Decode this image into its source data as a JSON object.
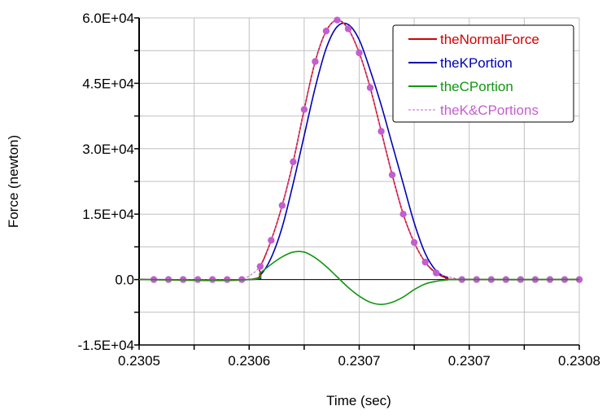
{
  "chart_data": {
    "type": "line",
    "title": "",
    "xlabel": "Time (sec)",
    "ylabel": "Force (newton)",
    "xlim": [
      0.2305,
      0.2308
    ],
    "ylim": [
      -15000,
      60000
    ],
    "grid": true,
    "legend_position": "top-right",
    "x_ticks": [
      0.2305,
      0.230575,
      0.23065,
      0.230725,
      0.2308
    ],
    "x_tick_labels": [
      "0.2305",
      "0.2306",
      "0.2307",
      "0.2307",
      "0.2308"
    ],
    "y_ticks": [
      60000,
      45000,
      30000,
      15000,
      0,
      -15000
    ],
    "y_tick_labels": [
      "6.0E+04",
      "4.5E+04",
      "3.0E+04",
      "1.5E+04",
      "0.0",
      "-1.5E+04"
    ],
    "x": [
      0.2305,
      0.230575,
      0.2305825,
      0.23059,
      0.2305975,
      0.230605,
      0.2306125,
      0.23062,
      0.2306275,
      0.230635,
      0.2306425,
      0.23065,
      0.2306575,
      0.230665,
      0.2306725,
      0.23068,
      0.2306875,
      0.230695,
      0.2307025,
      0.23071,
      0.2307175,
      0.2308
    ],
    "series": [
      {
        "name": "theNormalForce",
        "color": "#d40000",
        "style": "solid",
        "values": [
          0,
          0,
          3000,
          9000,
          17000,
          27000,
          39000,
          50000,
          57000,
          59500,
          57500,
          52000,
          44000,
          34000,
          24000,
          15000,
          8500,
          4000,
          1500,
          300,
          0,
          0
        ]
      },
      {
        "name": "theKPortion",
        "color": "#0000b4",
        "style": "solid",
        "values": [
          0,
          0,
          1000,
          5000,
          12000,
          22000,
          33000,
          44000,
          53000,
          58000,
          58500,
          55000,
          48000,
          40000,
          31000,
          22000,
          13000,
          6000,
          2000,
          500,
          0,
          0
        ]
      },
      {
        "name": "theCPortion",
        "color": "#129612",
        "style": "solid",
        "values": [
          0,
          0,
          1500,
          3500,
          5200,
          6300,
          6300,
          5000,
          3000,
          600,
          -1800,
          -3800,
          -5200,
          -5700,
          -5200,
          -4000,
          -2300,
          -1000,
          -400,
          -100,
          0,
          0
        ]
      }
    ],
    "markers": {
      "name": "theK&CPortions",
      "color": "#c35ed0",
      "style": "dashed-with-dots",
      "x": [
        0.23051,
        0.23052,
        0.23053,
        0.23054,
        0.23055,
        0.23056,
        0.23057,
        0.2305825,
        0.23059,
        0.2305975,
        0.230605,
        0.2306125,
        0.23062,
        0.2306275,
        0.230635,
        0.2306425,
        0.23065,
        0.2306575,
        0.230665,
        0.2306725,
        0.23068,
        0.2306875,
        0.230695,
        0.2307025,
        0.23072,
        0.23073,
        0.23074,
        0.23075,
        0.23076,
        0.23077,
        0.23078,
        0.23079,
        0.2308
      ],
      "values": [
        0,
        0,
        0,
        0,
        0,
        0,
        0,
        3000,
        9000,
        17000,
        27000,
        39000,
        50000,
        57000,
        59500,
        57500,
        52000,
        44000,
        34000,
        24000,
        15000,
        8500,
        4000,
        1500,
        0,
        0,
        0,
        0,
        0,
        0,
        0,
        0,
        0
      ]
    }
  }
}
